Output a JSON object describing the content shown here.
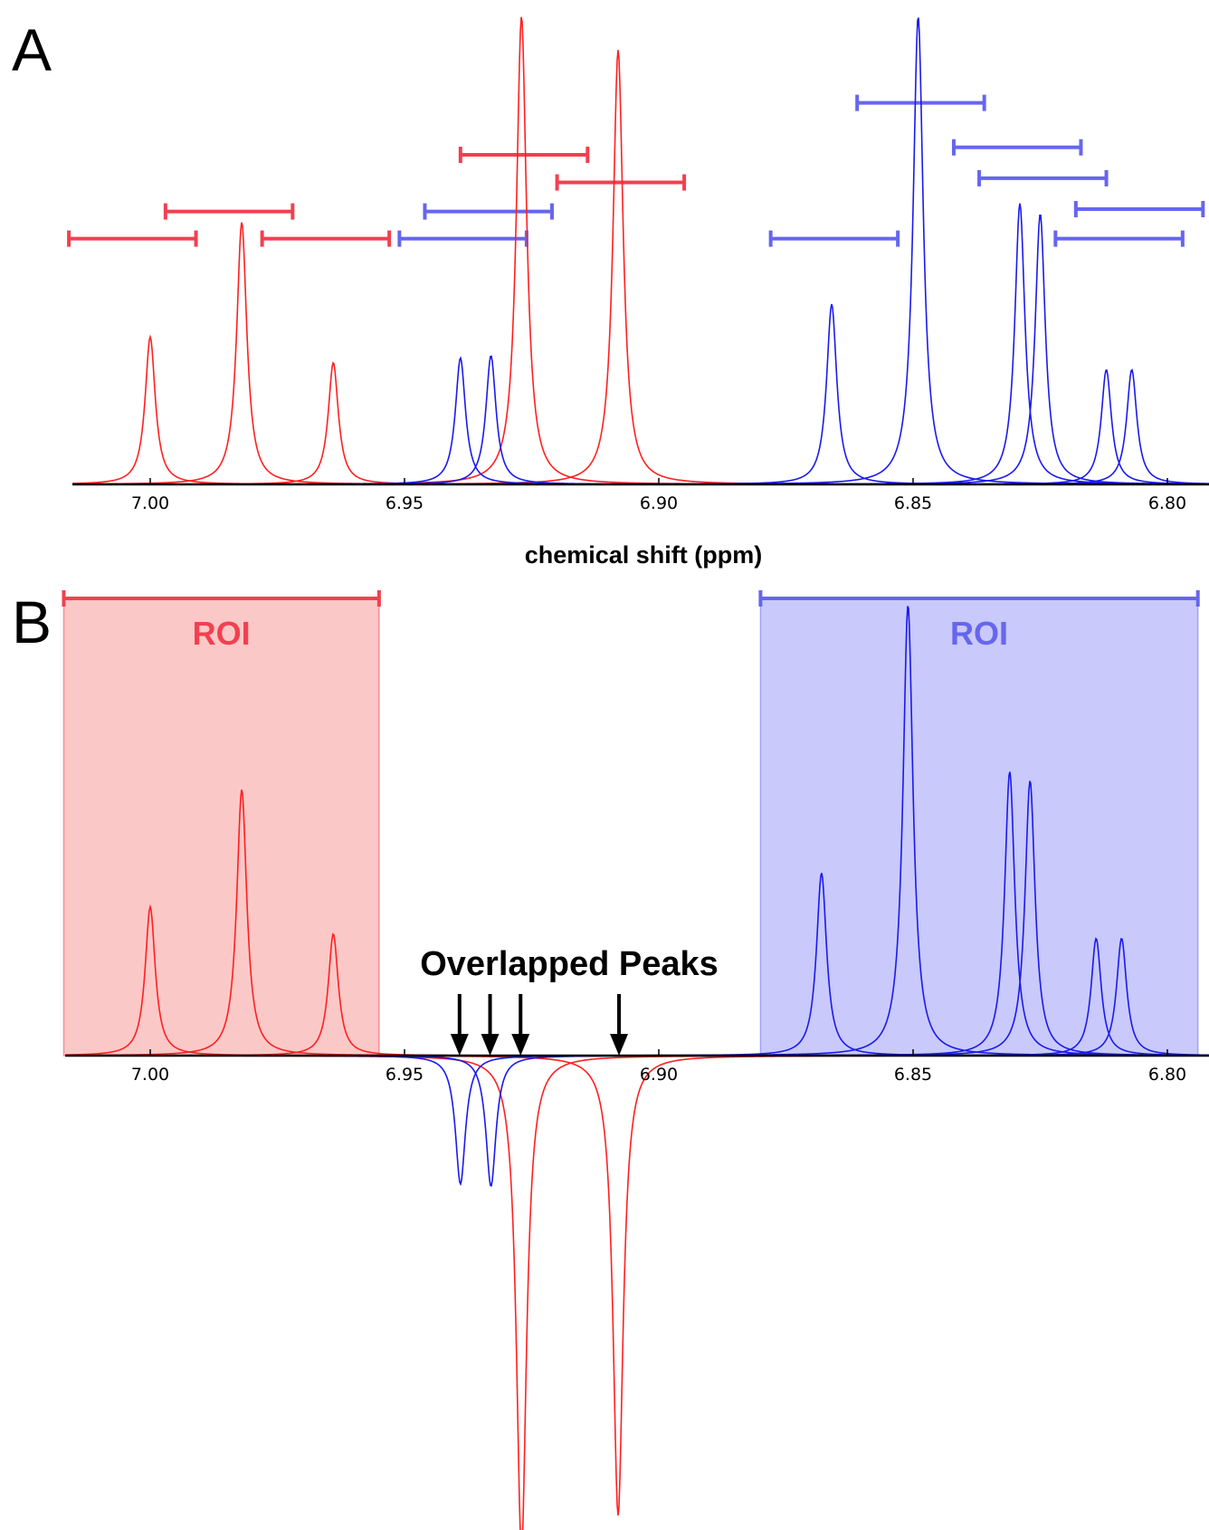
{
  "colors": {
    "red": "#ff2020",
    "blue": "#1a1aee",
    "range_red": "#f24050",
    "range_blue": "#6666ee",
    "roi_red_fill": "#fbc8c8",
    "roi_blue_fill": "#c9c9fb"
  },
  "chart_data": [
    {
      "panel": "A",
      "type": "line",
      "xlabel": "chemical shift (ppm)",
      "xlim": [
        7.017,
        6.793
      ],
      "x_reversed": true,
      "xticks": [
        7.0,
        6.95,
        6.9,
        6.85,
        6.8
      ],
      "xtick_labels": [
        "7.00",
        "6.95",
        "6.90",
        "6.85",
        "6.80"
      ],
      "ylim": [
        0,
        1
      ],
      "peak_halfwidth_ppm": 0.0012,
      "series": [
        {
          "color": "red",
          "peaks": [
            {
              "shift": 7.0,
              "height": 0.315
            },
            {
              "shift": 6.982,
              "height": 0.56
            },
            {
              "shift": 6.964,
              "height": 0.26
            },
            {
              "shift": 6.927,
              "height": 1.0
            },
            {
              "shift": 6.908,
              "height": 0.928
            }
          ]
        },
        {
          "color": "blue",
          "peaks": [
            {
              "shift": 6.939,
              "height": 0.27
            },
            {
              "shift": 6.933,
              "height": 0.275
            },
            {
              "shift": 6.866,
              "height": 0.385
            },
            {
              "shift": 6.849,
              "height": 1.0
            },
            {
              "shift": 6.829,
              "height": 0.6
            },
            {
              "shift": 6.825,
              "height": 0.578
            },
            {
              "shift": 6.812,
              "height": 0.245
            },
            {
              "shift": 6.807,
              "height": 0.245
            }
          ]
        }
      ],
      "ranges": [
        {
          "color": "red",
          "from": 7.016,
          "to": 6.991,
          "level": 0.525
        },
        {
          "color": "red",
          "from": 6.997,
          "to": 6.972,
          "level": 0.583
        },
        {
          "color": "red",
          "from": 6.978,
          "to": 6.953,
          "level": 0.525
        },
        {
          "color": "red",
          "from": 6.939,
          "to": 6.914,
          "level": 0.704
        },
        {
          "color": "red",
          "from": 6.92,
          "to": 6.895,
          "level": 0.645
        },
        {
          "color": "blue",
          "from": 6.951,
          "to": 6.926,
          "level": 0.525
        },
        {
          "color": "blue",
          "from": 6.946,
          "to": 6.921,
          "level": 0.583
        },
        {
          "color": "blue",
          "from": 6.878,
          "to": 6.853,
          "level": 0.525
        },
        {
          "color": "blue",
          "from": 6.861,
          "to": 6.836,
          "level": 0.815
        },
        {
          "color": "blue",
          "from": 6.842,
          "to": 6.817,
          "level": 0.72
        },
        {
          "color": "blue",
          "from": 6.837,
          "to": 6.812,
          "level": 0.654
        },
        {
          "color": "blue",
          "from": 6.822,
          "to": 6.797,
          "level": 0.525
        },
        {
          "color": "blue",
          "from": 6.818,
          "to": 6.793,
          "level": 0.588
        }
      ]
    },
    {
      "panel": "B",
      "type": "line",
      "xlim": [
        7.017,
        6.793
      ],
      "x_reversed": true,
      "xticks": [
        7.0,
        6.95,
        6.9,
        6.85,
        6.8
      ],
      "xtick_labels": [
        "7.00",
        "6.95",
        "6.90",
        "6.85",
        "6.80"
      ],
      "ylim": [
        -1.1,
        1.0
      ],
      "peak_halfwidth_ppm": 0.0012,
      "series": [
        {
          "color": "red",
          "peaks": [
            {
              "shift": 7.0,
              "height": 0.33
            },
            {
              "shift": 6.982,
              "height": 0.59
            },
            {
              "shift": 6.964,
              "height": 0.27
            },
            {
              "shift": 6.927,
              "height": -1.1
            },
            {
              "shift": 6.908,
              "height": -1.02
            }
          ]
        },
        {
          "color": "blue",
          "peaks": [
            {
              "shift": 6.939,
              "height": -0.285
            },
            {
              "shift": 6.933,
              "height": -0.29
            },
            {
              "shift": 6.868,
              "height": 0.405
            },
            {
              "shift": 6.851,
              "height": 1.0
            },
            {
              "shift": 6.831,
              "height": 0.63
            },
            {
              "shift": 6.827,
              "height": 0.61
            },
            {
              "shift": 6.814,
              "height": 0.26
            },
            {
              "shift": 6.809,
              "height": 0.26
            }
          ]
        }
      ],
      "rois": [
        {
          "color": "red",
          "from": 7.017,
          "to": 6.955,
          "label": "ROI"
        },
        {
          "color": "blue",
          "from": 6.88,
          "to": 6.794,
          "label": "ROI"
        }
      ],
      "annotation": {
        "text": "Overlapped Peaks",
        "arrows_at": [
          6.939,
          6.933,
          6.927,
          6.908
        ]
      }
    }
  ]
}
